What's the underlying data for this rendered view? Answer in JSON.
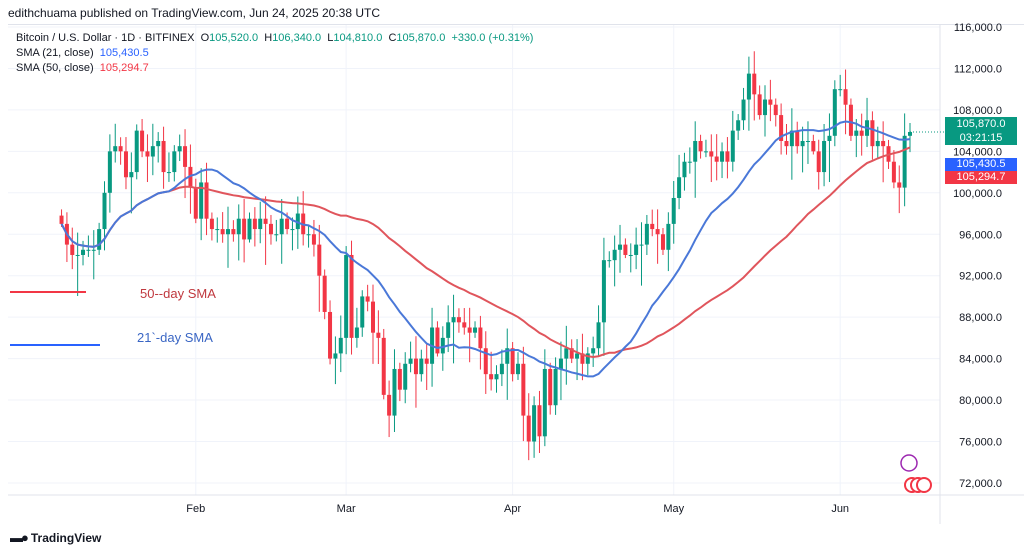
{
  "publisher": "edithchuama published on TradingView.com, Jun 24, 2025 20:38 UTC",
  "legend": {
    "symbol": "Bitcoin / U.S. Dollar · 1D · BITFINEX",
    "o_label": "O",
    "o": "105,520.0",
    "h_label": "H",
    "h": "106,340.0",
    "l_label": "L",
    "l": "104,810.0",
    "c_label": "C",
    "c": "105,870.0",
    "change": "+330.0 (+0.31%)",
    "sma21_label": "SMA (21, close)",
    "sma21": "105,430.5",
    "sma50_label": "SMA (50, close)",
    "sma50": "105,294.7"
  },
  "tags": {
    "price": "105,870.0",
    "countdown": "03:21:15",
    "sma21": "105,430.5",
    "sma50": "105,294.7"
  },
  "annotations": {
    "sma50": "50--day SMA",
    "sma21": "21`-day SMA"
  },
  "logo": "TradingView",
  "colors": {
    "up": "#089981",
    "down": "#f23645",
    "sma21": "#2962ff",
    "sma50": "#f23645"
  },
  "chart_data": {
    "type": "candlestick",
    "ylim": [
      70000,
      116000
    ],
    "yticks": [
      116000,
      112000,
      108000,
      104000,
      100000,
      96000,
      92000,
      88000,
      84000,
      80000,
      76000,
      72000
    ],
    "ytick_labels": [
      "116,000.0",
      "112,000.0",
      "108,000.0",
      "104,000.0",
      "100,000.0",
      "96,000.0",
      "92,000.0",
      "88,000.0",
      "84,000.0",
      "80,000.0",
      "76,000.0",
      "72,000.0"
    ],
    "xtick_labels": [
      "Feb",
      "Mar",
      "Apr",
      "May",
      "Jun"
    ],
    "xtick_day_index": [
      25,
      53,
      84,
      114,
      145
    ],
    "start_date": "2025-01-07",
    "closes": [
      97,
      95,
      94,
      94,
      94.5,
      94.5,
      94.5,
      96.5,
      100,
      104,
      104.5,
      104,
      101.5,
      102,
      106,
      104,
      103.5,
      104.5,
      105,
      102,
      102,
      104,
      104.5,
      102.5,
      100.5,
      97.5,
      101,
      97.5,
      96.5,
      96.5,
      96,
      96.5,
      96,
      97.5,
      95.5,
      97.5,
      96.5,
      97.5,
      97,
      96,
      96,
      97.5,
      96.5,
      96.5,
      98,
      96,
      96,
      95,
      92,
      88.5,
      84,
      84.5,
      86,
      94,
      86,
      87,
      90,
      89.5,
      86.5,
      86,
      80.5,
      78.5,
      83,
      81,
      83.5,
      84,
      82.5,
      84,
      83.5,
      87,
      84.5,
      86,
      87.5,
      88,
      87.5,
      87,
      86.5,
      87,
      85,
      82.5,
      82,
      82.5,
      83.5,
      85,
      82.5,
      83.5,
      78.5,
      76,
      79.5,
      76.5,
      83,
      79.5,
      83,
      84,
      85,
      84,
      84.5,
      83.5,
      84.5,
      85,
      87.5,
      93.5,
      93.5,
      94.5,
      95,
      94,
      94,
      95,
      95,
      97,
      96.5,
      96,
      94.5,
      97,
      99.5,
      101.5,
      103,
      103,
      105,
      104,
      104,
      103.5,
      103,
      104,
      103,
      106,
      107,
      109,
      111.5,
      109.5,
      107.5,
      109,
      108.5,
      107.5,
      105,
      104.5,
      106,
      104.5,
      105,
      105,
      104,
      102,
      105,
      105.5,
      110,
      110,
      108.5,
      105.5,
      106,
      105.5,
      107,
      104.5,
      105,
      104.5,
      103,
      101,
      100.5,
      105.5,
      105.87
    ]
  }
}
